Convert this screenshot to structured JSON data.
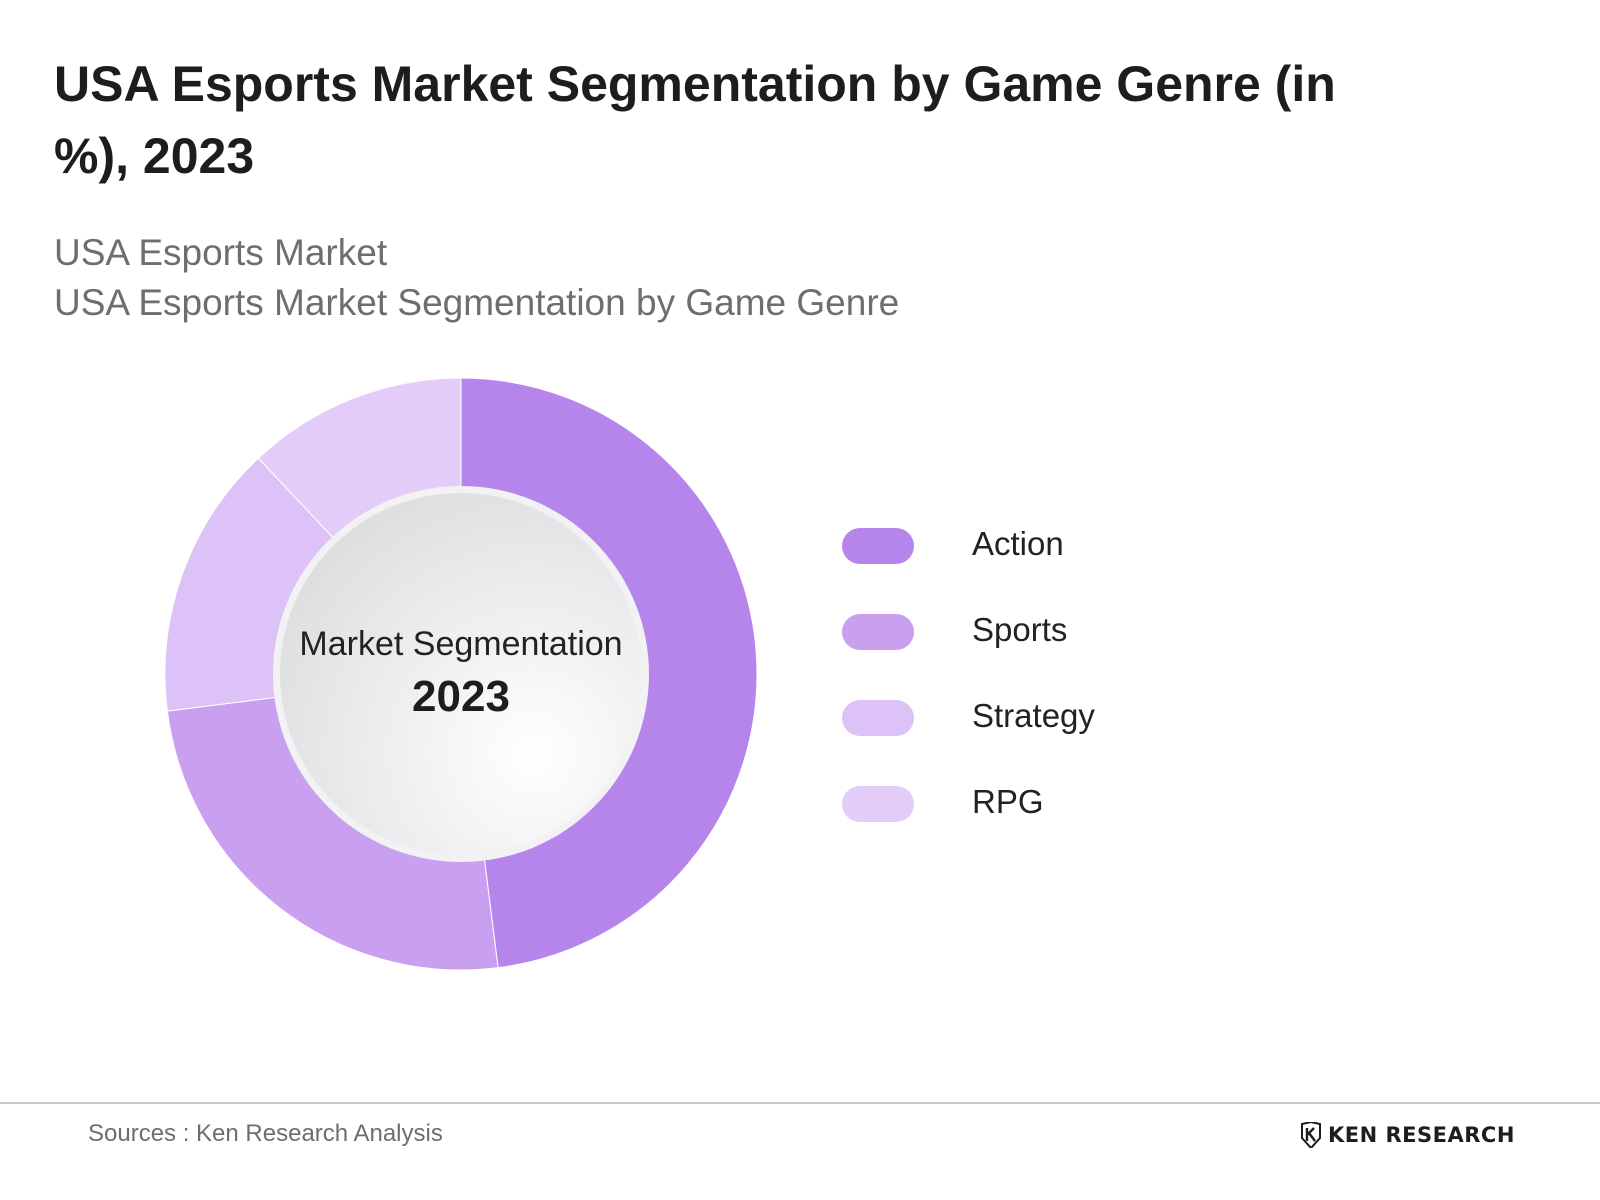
{
  "header": {
    "title": "USA Esports Market Segmentation by Game Genre (in %), 2023",
    "subtitle_line1": "USA Esports Market",
    "subtitle_line2": "USA Esports Market Segmentation by Game Genre"
  },
  "chart_data": {
    "type": "pie",
    "categories": [
      "Action",
      "Sports",
      "Strategy",
      "RPG"
    ],
    "values": [
      48,
      25,
      15,
      12
    ],
    "colors": [
      "#b585ec",
      "#c9a0f0",
      "#dcc2f7",
      "#e3cdf8"
    ],
    "legend_position": "right",
    "center_label": "Market Segmentation",
    "center_year": "2023"
  },
  "footer": {
    "sources": "Sources : Ken Research Analysis",
    "logo_text": "KEN RESEARCH"
  }
}
